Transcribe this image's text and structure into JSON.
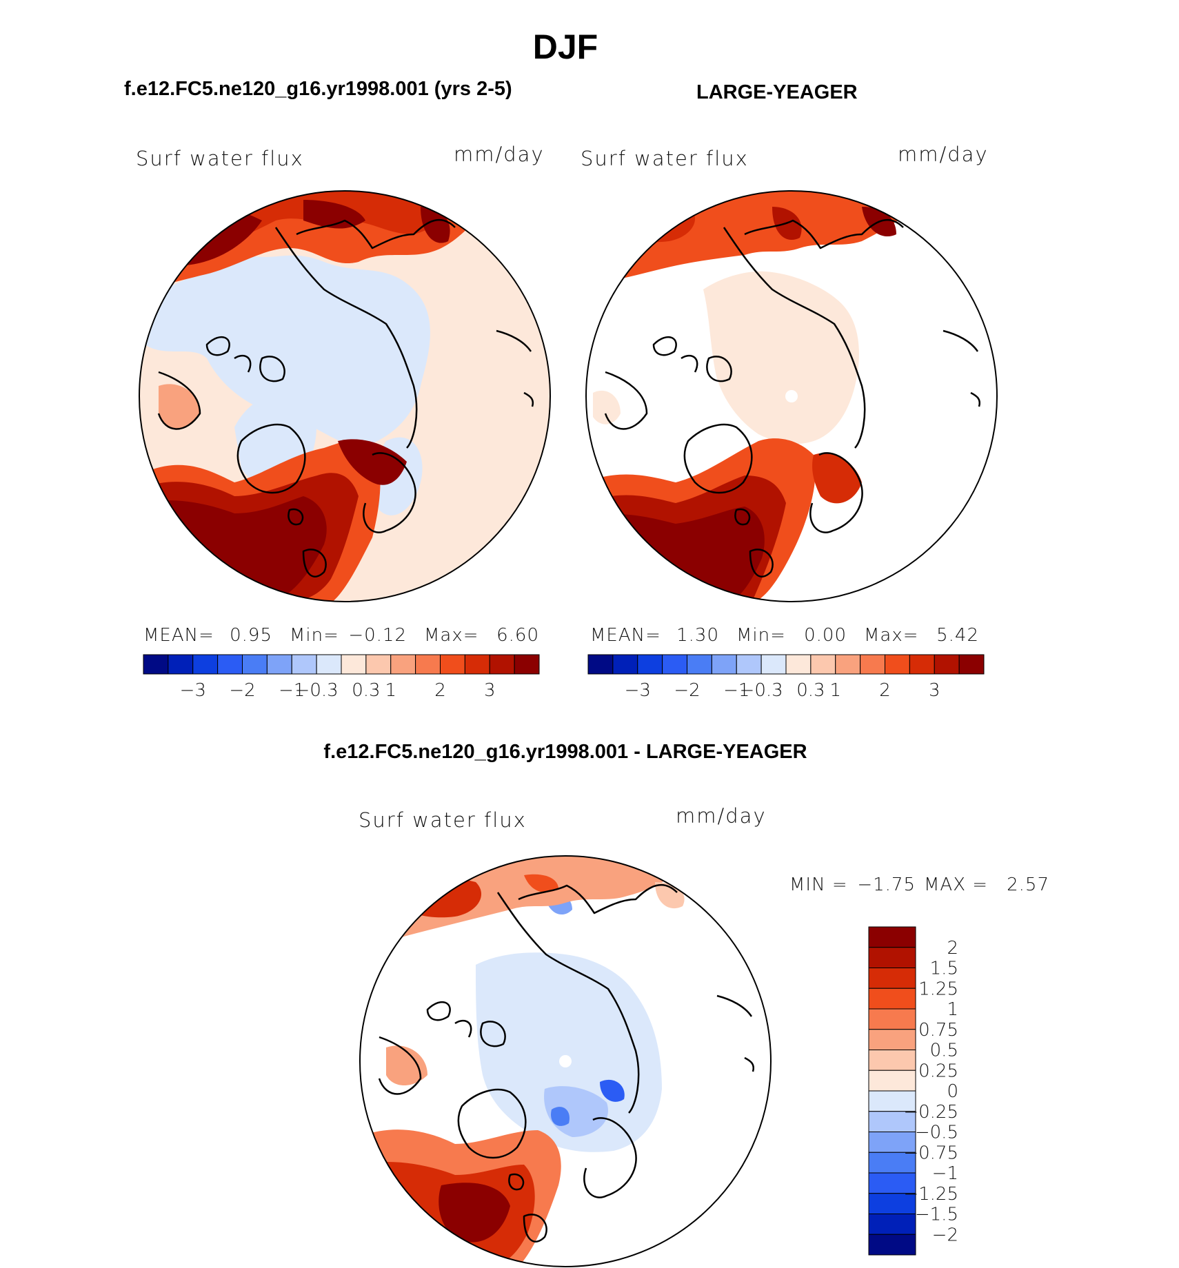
{
  "chart_data": {
    "type": "heatmap",
    "title": "DJF",
    "projection": "north polar stereographic",
    "panels": [
      {
        "case_title": "f.e12.FC5.ne120_g16.yr1998.001 (yrs 2-5)",
        "variable": "Surf water flux",
        "units": "mm/day",
        "stats": {
          "mean_label": "MEAN=",
          "mean": "0.95",
          "min_label": "Min=",
          "min": "−0.12",
          "max_label": "Max=",
          "max": "6.60"
        },
        "colorbar_ticks": [
          "−3",
          "−2",
          "−1",
          "−0.3",
          "0.3",
          "1",
          "2",
          "3"
        ]
      },
      {
        "case_title": "LARGE-YEAGER",
        "variable": "Surf water flux",
        "units": "mm/day",
        "stats": {
          "mean_label": "MEAN=",
          "mean": "1.30",
          "min_label": "Min=",
          "min": "0.00",
          "max_label": "Max=",
          "max": "5.42"
        },
        "colorbar_ticks": [
          "−3",
          "−2",
          "−1",
          "−0.3",
          "0.3",
          "1",
          "2",
          "3"
        ]
      },
      {
        "case_title": "f.e12.FC5.ne120_g16.yr1998.001 - LARGE-YEAGER",
        "variable": "Surf water flux",
        "units": "mm/day",
        "stats": {
          "min_label": "MIN =",
          "min": "−1.75",
          "max_label": "MAX =",
          "max": "2.57"
        },
        "colorbar_ticks": [
          "2",
          "1.5",
          "1.25",
          "1",
          "0.75",
          "0.5",
          "0.25",
          "0",
          "−0.25",
          "−0.5",
          "−0.75",
          "−1",
          "−1.25",
          "−1.5",
          "−2"
        ]
      }
    ],
    "colorbar_colors": [
      "#000a85",
      "#0020b8",
      "#0d3fe0",
      "#2b5cf4",
      "#4a7df5",
      "#7ea3f8",
      "#afc7fb",
      "#dbe8fb",
      "#fde8da",
      "#fcc8ae",
      "#f9a27e",
      "#f77a4e",
      "#f04e1c",
      "#d62c06",
      "#b11200",
      "#8b0000"
    ],
    "diff_colorbar_colors": [
      "#8b0000",
      "#b11200",
      "#d62c06",
      "#f04e1c",
      "#f77a4e",
      "#f9a27e",
      "#fcc8ae",
      "#fde8da",
      "#dbe8fb",
      "#afc7fb",
      "#7ea3f8",
      "#4a7df5",
      "#2b5cf4",
      "#0d3fe0",
      "#0020b8",
      "#000a85"
    ]
  }
}
